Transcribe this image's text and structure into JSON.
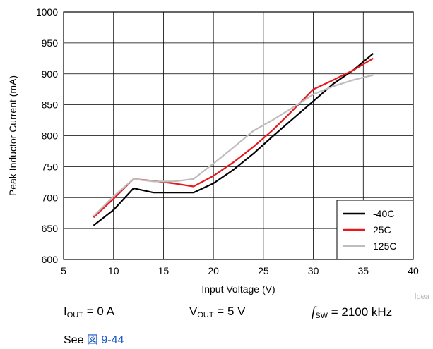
{
  "chart_data": {
    "type": "line",
    "title": "",
    "xlabel": "Input Voltage (V)",
    "ylabel": "Peak Inductor Current (mA)",
    "xlim": [
      5,
      40
    ],
    "ylim": [
      600,
      1000
    ],
    "xticks": [
      5,
      10,
      15,
      20,
      25,
      30,
      35,
      40
    ],
    "yticks": [
      600,
      650,
      700,
      750,
      800,
      850,
      900,
      950,
      1000
    ],
    "grid": true,
    "legend_position": "bottom-right",
    "series": [
      {
        "name": "-40C",
        "color": "#000000",
        "x": [
          8,
          10,
          12,
          14,
          16,
          18,
          20,
          22,
          24,
          26,
          28,
          30,
          32,
          34,
          36
        ],
        "y": [
          655,
          680,
          715,
          708,
          708,
          708,
          723,
          745,
          771,
          800,
          828,
          856,
          884,
          906,
          933
        ]
      },
      {
        "name": "25C",
        "color": "#e8171b",
        "x": [
          8,
          10,
          12,
          14,
          16,
          18,
          20,
          22,
          24,
          26,
          28,
          30,
          32,
          34,
          36
        ],
        "y": [
          668,
          698,
          730,
          727,
          723,
          718,
          735,
          757,
          782,
          810,
          842,
          875,
          890,
          906,
          925
        ]
      },
      {
        "name": "125C",
        "color": "#bdbdbd",
        "x": [
          8,
          10,
          12,
          14,
          16,
          18,
          20,
          22,
          24,
          26,
          28,
          30,
          32,
          34,
          36
        ],
        "y": [
          670,
          702,
          730,
          726,
          726,
          730,
          755,
          781,
          808,
          826,
          846,
          867,
          880,
          890,
          898
        ]
      }
    ]
  },
  "watermark": "lpea",
  "conditions": {
    "iout_main": "I",
    "iout_sub": "OUT",
    "iout_value": " = 0 A",
    "vout_main": "V",
    "vout_sub": "OUT",
    "vout_value": " = 5 V",
    "fsw_main": "f",
    "fsw_sub": "SW",
    "fsw_value": " = 2100 kHz"
  },
  "see_also": {
    "prefix": "See ",
    "link": "図 9-44"
  }
}
